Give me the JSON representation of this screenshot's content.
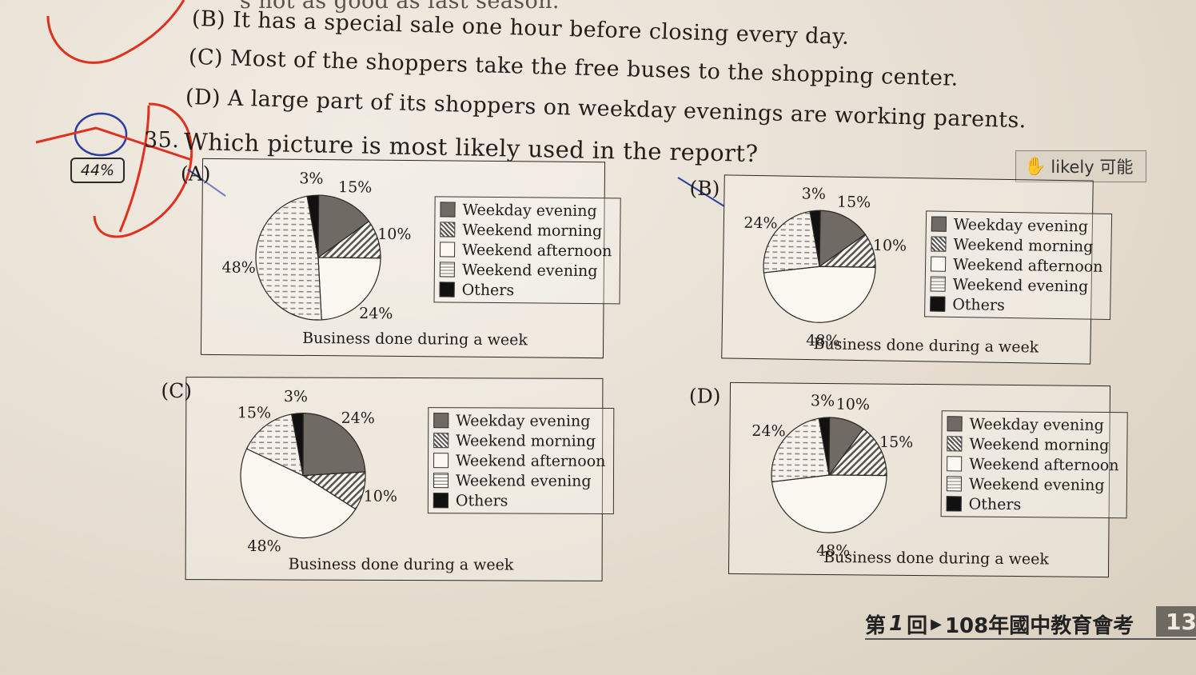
{
  "question": {
    "prev_line": "s not as good as last season.",
    "option_b": "(B) It has a special sale one hour before closing every day.",
    "option_c": "(C) Most of the shoppers take the free buses to the shopping center.",
    "option_d": "(D) A large part of its shoppers on weekday evenings are working parents.",
    "number": "35.",
    "text": "Which picture is most likely used in the report?",
    "score": "44%",
    "vocab_tag": "likely 可能",
    "handwritten_answer": "D"
  },
  "legend_labels": [
    "Weekday evening",
    "Weekend morning",
    "Weekend afternoon",
    "Weekend evening",
    "Others"
  ],
  "chart_data": [
    {
      "type": "pie",
      "option": "(A)",
      "title": "Business done during a week",
      "categories": [
        "Weekday evening",
        "Weekend morning",
        "Weekend afternoon",
        "Weekend evening",
        "Others"
      ],
      "values": [
        15,
        10,
        24,
        48,
        3
      ],
      "value_labels": [
        "15%",
        "10%",
        "24%",
        "48%",
        "3%"
      ],
      "legend": "right"
    },
    {
      "type": "pie",
      "option": "(B)",
      "title": "Business done during a week",
      "categories": [
        "Weekday evening",
        "Weekend morning",
        "Weekend afternoon",
        "Weekend evening",
        "Others"
      ],
      "values": [
        15,
        10,
        48,
        24,
        3
      ],
      "value_labels": [
        "15%",
        "10%",
        "48%",
        "24%",
        "3%"
      ],
      "legend": "right"
    },
    {
      "type": "pie",
      "option": "(C)",
      "title": "Business done during a week",
      "categories": [
        "Weekday evening",
        "Weekend morning",
        "Weekend afternoon",
        "Weekend evening",
        "Others"
      ],
      "values": [
        24,
        10,
        48,
        15,
        3
      ],
      "value_labels": [
        "24%",
        "10%",
        "48%",
        "15%",
        "3%"
      ],
      "legend": "right"
    },
    {
      "type": "pie",
      "option": "(D)",
      "title": "Business done during a week",
      "categories": [
        "Weekday evening",
        "Weekend morning",
        "Weekend afternoon",
        "Weekend evening",
        "Others"
      ],
      "values": [
        10,
        15,
        48,
        24,
        3
      ],
      "value_labels": [
        "10%",
        "15%",
        "48%",
        "24%",
        "3%"
      ],
      "legend": "right"
    }
  ],
  "footer": {
    "prefix": "第",
    "round": "1",
    "suffix": "回",
    "title": "108年國中教育會考",
    "page": "13"
  },
  "colors": {
    "weekday_evening": "#6f6a63",
    "ink_red": "#e0301e",
    "ink_blue": "#2a3f9e",
    "page": "#e9e2d6"
  }
}
